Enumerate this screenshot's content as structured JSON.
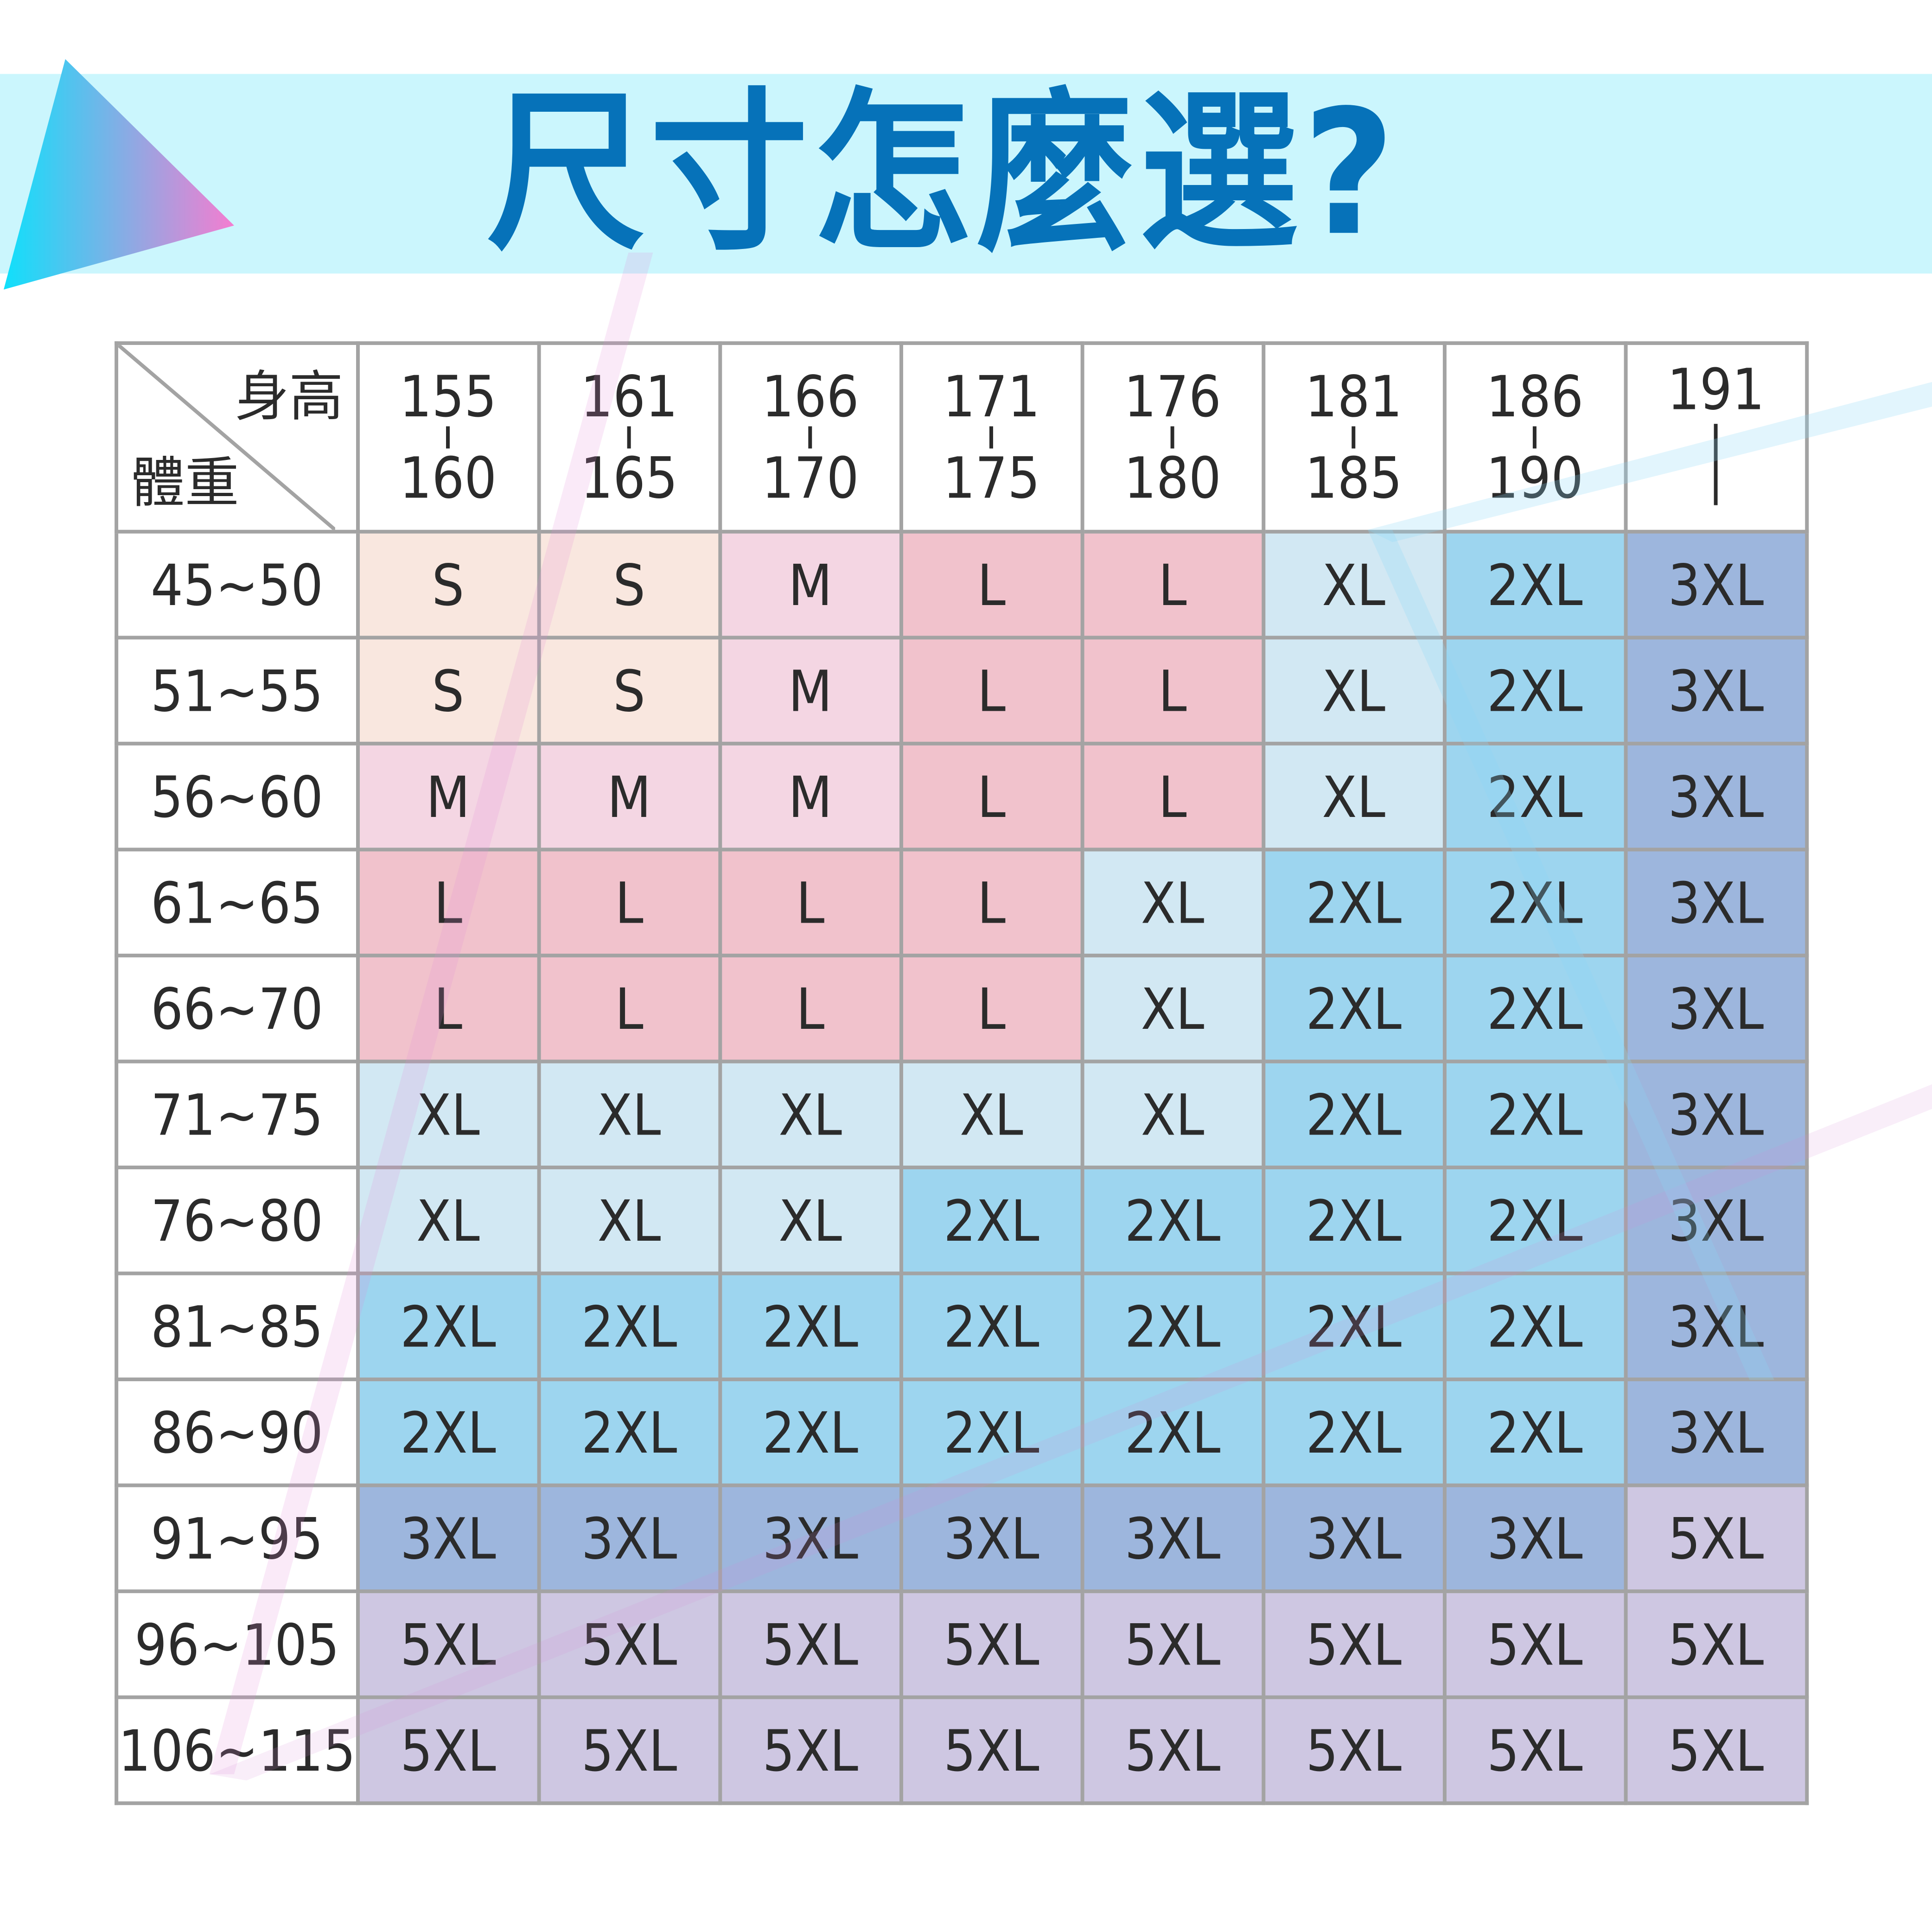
{
  "title": "尺寸怎麼選?",
  "colors": {
    "banner": "#cbf6fd",
    "title": "#0672b9",
    "border": "#a3a3a3"
  },
  "size_colors": {
    "S": "#f9e7df",
    "M": "#f4d6e3",
    "L": "#f1c2cc",
    "XL": "#d2e8f3",
    "2XL": "#9dd5ef",
    "3XL": "#9db6dd",
    "5XL": "#cec7e2"
  },
  "corner": {
    "height_label": "身高",
    "weight_label": "體重"
  },
  "columns": [
    {
      "from": "155",
      "to": "160"
    },
    {
      "from": "161",
      "to": "165"
    },
    {
      "from": "166",
      "to": "170"
    },
    {
      "from": "171",
      "to": "175"
    },
    {
      "from": "176",
      "to": "180"
    },
    {
      "from": "181",
      "to": "185"
    },
    {
      "from": "186",
      "to": "190"
    },
    {
      "from": "191",
      "to": ""
    }
  ],
  "rows": [
    {
      "weight": "45~50",
      "sizes": [
        "S",
        "S",
        "M",
        "L",
        "L",
        "XL",
        "2XL",
        "3XL"
      ]
    },
    {
      "weight": "51~55",
      "sizes": [
        "S",
        "S",
        "M",
        "L",
        "L",
        "XL",
        "2XL",
        "3XL"
      ]
    },
    {
      "weight": "56~60",
      "sizes": [
        "M",
        "M",
        "M",
        "L",
        "L",
        "XL",
        "2XL",
        "3XL"
      ]
    },
    {
      "weight": "61~65",
      "sizes": [
        "L",
        "L",
        "L",
        "L",
        "XL",
        "2XL",
        "2XL",
        "3XL"
      ]
    },
    {
      "weight": "66~70",
      "sizes": [
        "L",
        "L",
        "L",
        "L",
        "XL",
        "2XL",
        "2XL",
        "3XL"
      ]
    },
    {
      "weight": "71~75",
      "sizes": [
        "XL",
        "XL",
        "XL",
        "XL",
        "XL",
        "2XL",
        "2XL",
        "3XL"
      ]
    },
    {
      "weight": "76~80",
      "sizes": [
        "XL",
        "XL",
        "XL",
        "2XL",
        "2XL",
        "2XL",
        "2XL",
        "3XL"
      ]
    },
    {
      "weight": "81~85",
      "sizes": [
        "2XL",
        "2XL",
        "2XL",
        "2XL",
        "2XL",
        "2XL",
        "2XL",
        "3XL"
      ]
    },
    {
      "weight": "86~90",
      "sizes": [
        "2XL",
        "2XL",
        "2XL",
        "2XL",
        "2XL",
        "2XL",
        "2XL",
        "3XL"
      ]
    },
    {
      "weight": "91~95",
      "sizes": [
        "3XL",
        "3XL",
        "3XL",
        "3XL",
        "3XL",
        "3XL",
        "3XL",
        "5XL"
      ]
    },
    {
      "weight": "96~105",
      "sizes": [
        "5XL",
        "5XL",
        "5XL",
        "5XL",
        "5XL",
        "5XL",
        "5XL",
        "5XL"
      ]
    },
    {
      "weight": "106~115",
      "sizes": [
        "5XL",
        "5XL",
        "5XL",
        "5XL",
        "5XL",
        "5XL",
        "5XL",
        "5XL"
      ]
    }
  ]
}
